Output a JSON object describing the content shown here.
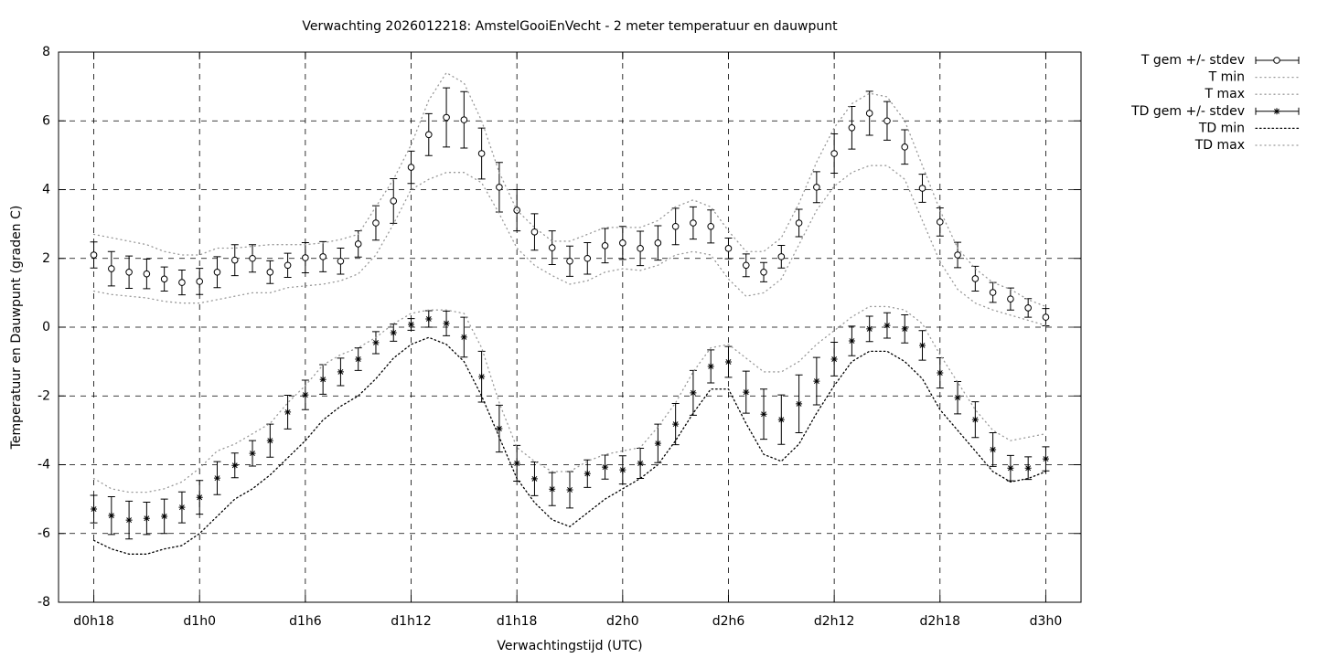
{
  "chart_data": {
    "type": "errorbar-line",
    "title": "Verwachting 2026012218: AmstelGooiEnVecht - 2 meter temperatuur en dauwpunt",
    "xlabel": "Verwachtingstijd (UTC)",
    "ylabel": "Temperatuur en Dauwpunt (graden C)",
    "x": [
      18,
      19,
      20,
      21,
      22,
      23,
      24,
      25,
      26,
      27,
      28,
      29,
      30,
      31,
      32,
      33,
      34,
      35,
      36,
      37,
      38,
      39,
      40,
      41,
      42,
      43,
      44,
      45,
      46,
      47,
      48,
      49,
      50,
      51,
      52,
      53,
      54,
      55,
      56,
      57,
      58,
      59,
      60,
      61,
      62,
      63,
      64,
      65,
      66,
      67,
      68,
      69,
      70,
      71,
      72
    ],
    "xlim": [
      16,
      74
    ],
    "xticks": [
      {
        "value": 18,
        "label": "d0h18"
      },
      {
        "value": 24,
        "label": "d1h0"
      },
      {
        "value": 30,
        "label": "d1h6"
      },
      {
        "value": 36,
        "label": "d1h12"
      },
      {
        "value": 42,
        "label": "d1h18"
      },
      {
        "value": 48,
        "label": "d2h0"
      },
      {
        "value": 54,
        "label": "d2h6"
      },
      {
        "value": 60,
        "label": "d2h12"
      },
      {
        "value": 66,
        "label": "d2h18"
      },
      {
        "value": 72,
        "label": "d3h0"
      }
    ],
    "ylim": [
      -8,
      8
    ],
    "yticks": [
      -8,
      -6,
      -4,
      -2,
      0,
      2,
      4,
      6,
      8
    ],
    "grid": true,
    "legend": "outside-upper-right",
    "series": [
      {
        "name": "T gem +/- stdev",
        "color": "#000000",
        "style": "errorbar",
        "marker": "circle",
        "values": [
          2.1,
          1.7,
          1.6,
          1.55,
          1.4,
          1.3,
          1.33,
          1.6,
          1.95,
          2.0,
          1.6,
          1.8,
          2.02,
          2.05,
          1.92,
          2.42,
          3.03,
          3.67,
          4.65,
          5.6,
          6.1,
          6.03,
          5.05,
          4.07,
          3.4,
          2.77,
          2.31,
          1.92,
          2.0,
          2.37,
          2.45,
          2.29,
          2.45,
          2.93,
          3.03,
          2.93,
          2.29,
          1.8,
          1.6,
          2.05,
          3.03,
          4.07,
          5.05,
          5.8,
          6.22,
          6.0,
          5.24,
          4.04,
          3.06,
          2.1,
          1.41,
          1.01,
          0.82,
          0.56,
          0.29
        ],
        "errors": [
          0.38,
          0.5,
          0.47,
          0.43,
          0.35,
          0.36,
          0.38,
          0.45,
          0.45,
          0.4,
          0.33,
          0.35,
          0.44,
          0.44,
          0.38,
          0.38,
          0.5,
          0.65,
          0.47,
          0.61,
          0.86,
          0.82,
          0.74,
          0.72,
          0.6,
          0.53,
          0.49,
          0.44,
          0.46,
          0.5,
          0.48,
          0.5,
          0.5,
          0.53,
          0.47,
          0.48,
          0.3,
          0.33,
          0.28,
          0.33,
          0.4,
          0.45,
          0.57,
          0.62,
          0.64,
          0.56,
          0.5,
          0.41,
          0.41,
          0.37,
          0.36,
          0.29,
          0.32,
          0.27,
          0.25
        ]
      },
      {
        "name": "T min",
        "color": "#999999",
        "style": "dotted",
        "values": [
          1.05,
          0.95,
          0.9,
          0.85,
          0.75,
          0.7,
          0.7,
          0.8,
          0.9,
          1.0,
          1.0,
          1.15,
          1.2,
          1.25,
          1.35,
          1.55,
          2.1,
          3.0,
          4.0,
          4.3,
          4.5,
          4.5,
          4.2,
          3.3,
          2.3,
          1.8,
          1.5,
          1.25,
          1.35,
          1.6,
          1.7,
          1.65,
          1.8,
          2.1,
          2.2,
          2.1,
          1.4,
          0.9,
          1.0,
          1.4,
          2.4,
          3.4,
          4.1,
          4.5,
          4.7,
          4.7,
          4.3,
          3.1,
          1.9,
          1.1,
          0.7,
          0.5,
          0.35,
          0.2,
          0.05
        ]
      },
      {
        "name": "T max",
        "color": "#999999",
        "style": "dotted",
        "values": [
          2.7,
          2.6,
          2.5,
          2.4,
          2.2,
          2.1,
          2.1,
          2.3,
          2.3,
          2.35,
          2.4,
          2.4,
          2.4,
          2.45,
          2.55,
          2.7,
          3.5,
          4.3,
          5.3,
          6.6,
          7.4,
          7.1,
          6.0,
          4.5,
          3.4,
          2.9,
          2.5,
          2.5,
          2.7,
          2.9,
          2.9,
          2.9,
          3.1,
          3.5,
          3.7,
          3.5,
          2.8,
          2.2,
          2.2,
          2.6,
          3.6,
          4.8,
          5.8,
          6.5,
          6.8,
          6.7,
          6.0,
          4.7,
          3.4,
          2.3,
          1.7,
          1.3,
          1.1,
          0.8,
          0.6
        ]
      },
      {
        "name": "TD gem +/- stdev",
        "color": "#000000",
        "style": "errorbar",
        "marker": "star",
        "values": [
          -5.29,
          -5.48,
          -5.61,
          -5.56,
          -5.5,
          -5.24,
          -4.95,
          -4.39,
          -4.02,
          -3.67,
          -3.3,
          -2.47,
          -1.97,
          -1.52,
          -1.3,
          -0.93,
          -0.45,
          -0.16,
          0.08,
          0.24,
          0.11,
          -0.29,
          -1.44,
          -2.95,
          -3.96,
          -4.41,
          -4.71,
          -4.73,
          -4.26,
          -4.07,
          -4.15,
          -3.96,
          -3.38,
          -2.82,
          -1.91,
          -1.14,
          -1.01,
          -1.89,
          -2.53,
          -2.69,
          -2.23,
          -1.57,
          -0.93,
          -0.4,
          -0.05,
          0.05,
          -0.05,
          -0.53,
          -1.33,
          -2.05,
          -2.69,
          -3.56,
          -4.1,
          -4.1,
          -3.83
        ],
        "errors": [
          0.4,
          0.55,
          0.55,
          0.47,
          0.5,
          0.45,
          0.49,
          0.48,
          0.36,
          0.37,
          0.48,
          0.49,
          0.43,
          0.43,
          0.4,
          0.33,
          0.32,
          0.25,
          0.17,
          0.24,
          0.36,
          0.58,
          0.74,
          0.68,
          0.52,
          0.49,
          0.48,
          0.53,
          0.4,
          0.35,
          0.41,
          0.44,
          0.56,
          0.6,
          0.65,
          0.48,
          0.45,
          0.61,
          0.73,
          0.72,
          0.84,
          0.69,
          0.49,
          0.43,
          0.37,
          0.37,
          0.41,
          0.43,
          0.44,
          0.47,
          0.52,
          0.49,
          0.37,
          0.33,
          0.35
        ]
      },
      {
        "name": "TD min",
        "color": "#000000",
        "style": "dense-dotted",
        "values": [
          -6.2,
          -6.45,
          -6.6,
          -6.6,
          -6.45,
          -6.35,
          -6.0,
          -5.5,
          -5.0,
          -4.7,
          -4.3,
          -3.8,
          -3.3,
          -2.7,
          -2.3,
          -2.0,
          -1.5,
          -0.9,
          -0.5,
          -0.3,
          -0.5,
          -1.0,
          -2.0,
          -3.2,
          -4.4,
          -5.1,
          -5.6,
          -5.8,
          -5.4,
          -5.0,
          -4.7,
          -4.4,
          -4.0,
          -3.3,
          -2.5,
          -1.8,
          -1.8,
          -2.8,
          -3.7,
          -3.9,
          -3.4,
          -2.5,
          -1.7,
          -1.0,
          -0.7,
          -0.7,
          -1.0,
          -1.5,
          -2.4,
          -3.0,
          -3.6,
          -4.2,
          -4.5,
          -4.4,
          -4.2
        ]
      },
      {
        "name": "TD max",
        "color": "#999999",
        "style": "dotted",
        "values": [
          -4.4,
          -4.7,
          -4.8,
          -4.8,
          -4.7,
          -4.5,
          -4.1,
          -3.6,
          -3.4,
          -3.1,
          -2.8,
          -2.2,
          -1.7,
          -1.1,
          -0.8,
          -0.6,
          -0.3,
          0.1,
          0.4,
          0.5,
          0.5,
          0.4,
          -0.6,
          -2.2,
          -3.5,
          -3.9,
          -4.2,
          -4.2,
          -3.9,
          -3.7,
          -3.6,
          -3.5,
          -2.9,
          -2.2,
          -1.3,
          -0.6,
          -0.5,
          -0.9,
          -1.3,
          -1.3,
          -1.0,
          -0.5,
          -0.1,
          0.3,
          0.6,
          0.6,
          0.5,
          0.1,
          -0.8,
          -1.6,
          -2.4,
          -3.0,
          -3.3,
          -3.2,
          -3.1
        ]
      }
    ]
  }
}
